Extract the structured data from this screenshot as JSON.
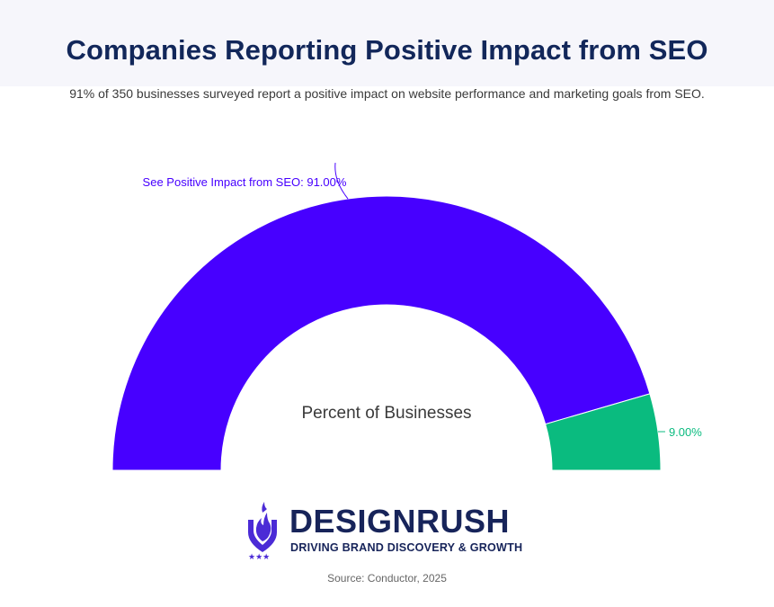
{
  "header": {
    "title": "Companies Reporting Positive Impact from SEO",
    "subtitle": "91% of 350 businesses surveyed report a positive impact on website performance and marketing goals from SEO."
  },
  "chart_data": {
    "type": "pie",
    "style": "semi-donut",
    "center_label": "Percent of Businesses",
    "slices": [
      {
        "label": "See Positive Impact from SEO",
        "value": 91.0,
        "display": "See Positive Impact from SEO: 91.00%",
        "color": "#4700ff"
      },
      {
        "label": "",
        "value": 9.0,
        "display": "9.00%",
        "color": "#0abb7f"
      }
    ]
  },
  "brand": {
    "name": "DESIGNRUSH",
    "tagline": "DRIVING BRAND DISCOVERY & GROWTH",
    "color": "#17245a",
    "accent": "#4b2bd6",
    "icon": "flame-shield-icon"
  },
  "source": "Source: Conductor, 2025"
}
